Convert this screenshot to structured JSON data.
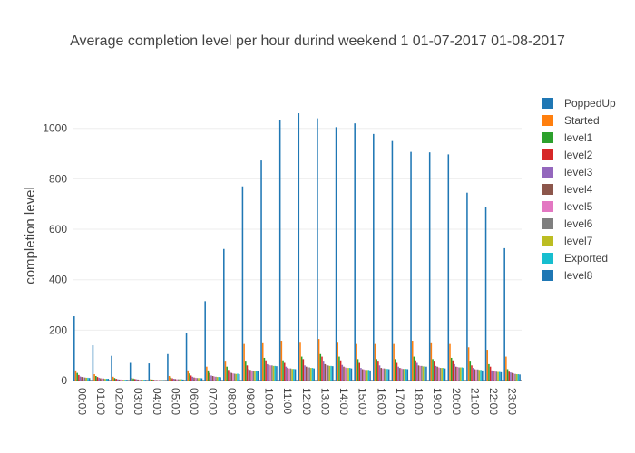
{
  "chart_data": {
    "type": "bar",
    "title": "Average completion level per hour durind weekend 1 01-07-2017 01-08-2017",
    "xlabel": "",
    "ylabel": "completion level",
    "ylim": [
      0,
      1150
    ],
    "yticks": [
      0,
      200,
      400,
      600,
      800,
      1000
    ],
    "grid": true,
    "legend_position": "right",
    "categories": [
      "00:00",
      "01:00",
      "02:00",
      "03:00",
      "04:00",
      "05:00",
      "06:00",
      "07:00",
      "08:00",
      "09:00",
      "10:00",
      "11:00",
      "12:00",
      "13:00",
      "14:00",
      "15:00",
      "16:00",
      "17:00",
      "18:00",
      "19:00",
      "20:00",
      "21:00",
      "22:00",
      "23:00"
    ],
    "series": [
      {
        "name": "PoppedUp",
        "color": "#1f77b4",
        "values": [
          255,
          140,
          98,
          70,
          68,
          105,
          188,
          315,
          522,
          770,
          873,
          1033,
          1060,
          1040,
          1005,
          1020,
          978,
          950,
          907,
          905,
          897,
          745,
          688,
          525
        ]
      },
      {
        "name": "Started",
        "color": "#ff7f0e",
        "values": [
          40,
          25,
          15,
          10,
          5,
          18,
          40,
          55,
          75,
          145,
          148,
          158,
          150,
          165,
          150,
          145,
          145,
          145,
          158,
          148,
          145,
          132,
          122,
          95
        ]
      },
      {
        "name": "level1",
        "color": "#2ca02c",
        "values": [
          30,
          18,
          10,
          8,
          4,
          12,
          28,
          40,
          55,
          75,
          90,
          80,
          95,
          105,
          95,
          85,
          85,
          85,
          95,
          85,
          90,
          75,
          65,
          45
        ]
      },
      {
        "name": "level2",
        "color": "#d62728",
        "values": [
          22,
          14,
          7,
          6,
          3,
          9,
          20,
          30,
          42,
          60,
          80,
          70,
          85,
          95,
          80,
          70,
          75,
          70,
          80,
          75,
          80,
          60,
          55,
          35
        ]
      },
      {
        "name": "level3",
        "color": "#9467bd",
        "values": [
          16,
          11,
          5,
          5,
          2,
          7,
          15,
          20,
          33,
          45,
          65,
          55,
          60,
          75,
          62,
          50,
          60,
          55,
          70,
          58,
          65,
          50,
          40,
          32
        ]
      },
      {
        "name": "level4",
        "color": "#8c564b",
        "values": [
          14,
          9,
          4,
          4,
          2,
          6,
          12,
          18,
          30,
          42,
          62,
          50,
          55,
          65,
          55,
          45,
          50,
          50,
          60,
          55,
          55,
          45,
          38,
          30
        ]
      },
      {
        "name": "level5",
        "color": "#e377c2",
        "values": [
          13,
          8,
          4,
          3,
          2,
          5,
          11,
          16,
          28,
          40,
          60,
          48,
          52,
          62,
          52,
          44,
          48,
          48,
          58,
          52,
          54,
          44,
          36,
          28
        ]
      },
      {
        "name": "level6",
        "color": "#7f7f7f",
        "values": [
          12,
          8,
          3,
          3,
          2,
          5,
          10,
          15,
          27,
          38,
          60,
          48,
          52,
          60,
          50,
          42,
          48,
          46,
          58,
          50,
          52,
          44,
          35,
          26
        ]
      },
      {
        "name": "level7",
        "color": "#bcbd22",
        "values": [
          11,
          7,
          3,
          3,
          1,
          5,
          10,
          14,
          26,
          38,
          58,
          46,
          50,
          58,
          50,
          42,
          46,
          46,
          56,
          50,
          52,
          42,
          34,
          25
        ]
      },
      {
        "name": "Exported",
        "color": "#17becf",
        "values": [
          11,
          7,
          3,
          3,
          1,
          5,
          10,
          14,
          27,
          38,
          58,
          46,
          50,
          58,
          50,
          42,
          46,
          46,
          56,
          50,
          52,
          42,
          34,
          25
        ]
      },
      {
        "name": "level8",
        "color": "#1f77b4",
        "values": [
          10,
          7,
          3,
          3,
          1,
          4,
          9,
          13,
          25,
          36,
          57,
          45,
          48,
          57,
          48,
          40,
          45,
          45,
          55,
          48,
          50,
          40,
          33,
          24
        ]
      }
    ]
  }
}
